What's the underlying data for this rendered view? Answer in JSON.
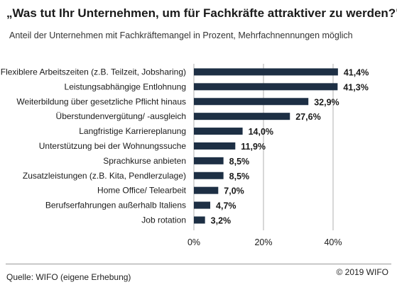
{
  "chart_data": {
    "type": "bar",
    "orientation": "horizontal",
    "title": "„Was tut Ihr Unternehmen, um für Fachkräfte attraktiver zu werden?\"",
    "subtitle": "Anteil der Unternehmen mit Fachkräftemangel in Prozent, Mehrfachnennungen möglich",
    "categories": [
      "Flexiblere Arbeitszeiten (z.B. Teilzeit, Jobsharing)",
      "Leistungsabhängige Entlohnung",
      "Weiterbildung über gesetzliche Pflicht hinaus",
      "Überstundenvergütung/ -ausgleich",
      "Langfristige Karriereplanung",
      "Unterstützung bei der Wohnungssuche",
      "Sprachkurse anbieten",
      "Zusatzleistungen (z.B. Kita, Pendlerzulage)",
      "Home Office/ Telearbeit",
      "Berufserfahrungen außerhalb Italiens",
      "Job rotation"
    ],
    "values": [
      41.4,
      41.3,
      32.9,
      27.6,
      14.0,
      11.9,
      8.5,
      8.5,
      7.0,
      4.7,
      3.2
    ],
    "value_labels": [
      "41,4%",
      "41,3%",
      "32,9%",
      "27,6%",
      "14,0%",
      "11,9%",
      "8,5%",
      "8,5%",
      "7,0%",
      "4,7%",
      "3,2%"
    ],
    "xlim": [
      0,
      40
    ],
    "x_ticks": [
      0,
      20,
      40
    ],
    "x_tick_labels": [
      "0%",
      "20%",
      "40%"
    ],
    "grid": true,
    "bar_color": "#1d2f44"
  },
  "footer": {
    "source": "Quelle: WIFO (eigene Erhebung)",
    "copyright": "© 2019 WIFO"
  }
}
